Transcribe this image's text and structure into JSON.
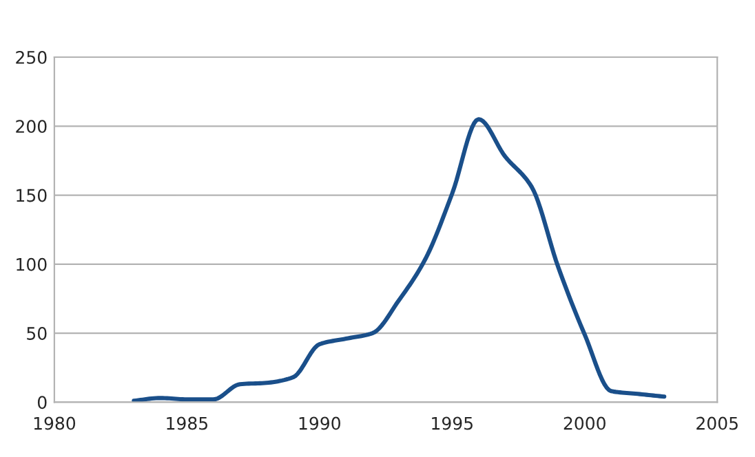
{
  "chart_data": {
    "type": "line",
    "x": [
      1983,
      1984,
      1985,
      1986,
      1987,
      1988,
      1989,
      1990,
      1991,
      1992,
      1993,
      1994,
      1995,
      1996,
      1997,
      1998,
      1999,
      2000,
      2001,
      2002,
      2003
    ],
    "series": [
      {
        "color": "#1a4f8a",
        "values": [
          1,
          3,
          2,
          2,
          13,
          14,
          18,
          42,
          46,
          50,
          74,
          104,
          151,
          205,
          178,
          156,
          98,
          49,
          8,
          6,
          4
        ]
      }
    ],
    "xlim": [
      1980,
      2005
    ],
    "xticks": [
      1980,
      1985,
      1990,
      1995,
      2000,
      2005
    ],
    "ylim": [
      0,
      250
    ],
    "yticks": [
      0,
      50,
      100,
      150,
      200,
      250
    ],
    "grid": "y",
    "marker": "none",
    "line_style": "solid"
  }
}
